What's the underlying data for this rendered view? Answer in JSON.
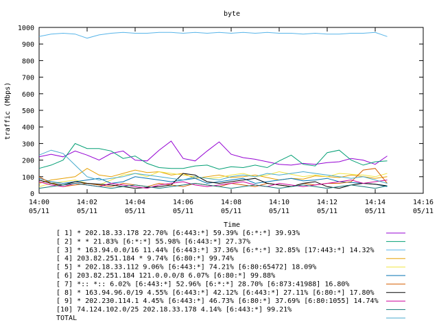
{
  "chart_data": {
    "type": "line",
    "title": "byte",
    "xlabel": "Time",
    "ylabel": "traffic (Mbps)",
    "ylim": [
      0,
      1000
    ],
    "yticks": [
      0,
      100,
      200,
      300,
      400,
      500,
      600,
      700,
      800,
      900,
      1000
    ],
    "xlim": [
      "14:00",
      "14:16"
    ],
    "xticks": [
      {
        "time": "14:00",
        "date": "05/11"
      },
      {
        "time": "14:02",
        "date": "05/11"
      },
      {
        "time": "14:04",
        "date": "05/11"
      },
      {
        "time": "14:06",
        "date": "05/11"
      },
      {
        "time": "14:08",
        "date": "05/11"
      },
      {
        "time": "14:10",
        "date": "05/11"
      },
      {
        "time": "14:12",
        "date": "05/11"
      },
      {
        "time": "14:14",
        "date": "05/11"
      },
      {
        "time": "14:16",
        "date": "05/11"
      }
    ],
    "grid": false,
    "legend_position": "bottom",
    "x": [
      "14:00",
      "14:00:30",
      "14:01",
      "14:01:30",
      "14:02",
      "14:02:30",
      "14:03",
      "14:03:30",
      "14:04",
      "14:04:30",
      "14:05",
      "14:05:30",
      "14:06",
      "14:06:30",
      "14:07",
      "14:07:30",
      "14:08",
      "14:08:30",
      "14:09",
      "14:09:30",
      "14:10",
      "14:10:30",
      "14:11",
      "14:11:30",
      "14:12",
      "14:12:30",
      "14:13",
      "14:13:30",
      "14:14",
      "14:14:30"
    ],
    "series": [
      {
        "name": "[ 1] * 202.18.33.178 22.70%  [6:443:*] 59.39% [6:*:*] 39.93%",
        "color": "#9400d3",
        "values": [
          220,
          235,
          220,
          255,
          230,
          200,
          240,
          255,
          200,
          195,
          260,
          315,
          210,
          195,
          255,
          310,
          235,
          215,
          205,
          190,
          175,
          170,
          180,
          175,
          185,
          190,
          210,
          200,
          175,
          225
        ]
      },
      {
        "name": "[ 2] * * 21.83%  [6:*:*] 55.98% [6:443:*] 27.37%",
        "color": "#009e73",
        "values": [
          150,
          170,
          200,
          300,
          270,
          270,
          255,
          210,
          225,
          180,
          155,
          150,
          150,
          165,
          170,
          145,
          160,
          155,
          170,
          155,
          195,
          230,
          175,
          165,
          245,
          260,
          200,
          170,
          190,
          195
        ]
      },
      {
        "name": "[ 3] * 163.94.0.0/16 11.44%  [6:443:*] 37.36% [6:*:*] 32.85% [17:443:*] 14.32%",
        "color": "#56b4e9",
        "values": [
          945,
          960,
          965,
          960,
          935,
          955,
          965,
          970,
          965,
          965,
          970,
          970,
          965,
          970,
          965,
          970,
          965,
          970,
          965,
          970,
          965,
          965,
          960,
          965,
          960,
          960,
          965,
          965,
          970,
          945
        ]
      },
      {
        "name": "[ 4] 203.82.251.184 * 9.74%  [6:80:*] 99.74%",
        "color": "#e69f00",
        "values": [
          60,
          80,
          90,
          100,
          150,
          110,
          100,
          120,
          140,
          125,
          130,
          110,
          120,
          90,
          100,
          110,
          95,
          100,
          110,
          95,
          80,
          90,
          85,
          105,
          100,
          95,
          110,
          100,
          90,
          100
        ]
      },
      {
        "name": "[ 5] * 202.18.33.112 9.06%  [6:443:*] 74.21% [6:80:65472] 18.09%",
        "color": "#f0e442",
        "values": [
          40,
          60,
          70,
          80,
          60,
          50,
          80,
          110,
          120,
          100,
          130,
          120,
          110,
          100,
          90,
          95,
          110,
          120,
          100,
          110,
          130,
          115,
          100,
          110,
          100,
          120,
          115,
          110,
          100,
          120
        ]
      },
      {
        "name": "[ 6] 203.82.251.184 121.0.0.0/8 6.07%  [6:80:*] 99.88%",
        "color": "#0072b2",
        "values": [
          90,
          70,
          60,
          70,
          80,
          90,
          60,
          70,
          100,
          90,
          80,
          70,
          80,
          90,
          60,
          70,
          80,
          90,
          60,
          70,
          80,
          90,
          75,
          80,
          90,
          70,
          65,
          60,
          55,
          40
        ]
      },
      {
        "name": "[ 7] *:: *:: 6.02%  [6:443:*] 52.96% [6:*:*] 28.70% [6:873:41988] 16.80%",
        "color": "#d55e00",
        "values": [
          100,
          60,
          40,
          50,
          60,
          50,
          40,
          60,
          50,
          40,
          60,
          50,
          40,
          60,
          50,
          40,
          60,
          50,
          40,
          60,
          50,
          40,
          60,
          50,
          60,
          60,
          70,
          140,
          150,
          60
        ]
      },
      {
        "name": "[ 8] * 163.94.96.0/19 4.55%  [6:443:*] 42.12% [6:443:*] 27.11% [6:80:*] 17.80%",
        "color": "#000000",
        "values": [
          80,
          60,
          50,
          70,
          60,
          55,
          50,
          40,
          30,
          35,
          40,
          50,
          120,
          110,
          70,
          60,
          70,
          80,
          90,
          60,
          50,
          40,
          60,
          70,
          40,
          30,
          50,
          60,
          55,
          45
        ]
      },
      {
        "name": "[ 9] * 202.230.114.1 4.45%  [6:443:*] 46.73% [6:80:*] 37.69% [6:80:1055] 14.74%",
        "color": "#cc0099",
        "values": [
          70,
          50,
          40,
          60,
          50,
          40,
          60,
          50,
          40,
          30,
          50,
          60,
          70,
          50,
          40,
          50,
          60,
          70,
          50,
          40,
          60,
          50,
          40,
          50,
          60,
          70,
          80,
          60,
          70,
          80
        ]
      },
      {
        "name": "[10] 74.124.102.0/25 202.18.33.178 4.14%  [6:443:*] 99.21%",
        "color": "#117777",
        "values": [
          30,
          40,
          50,
          60,
          50,
          40,
          30,
          40,
          50,
          40,
          30,
          40,
          50,
          60,
          50,
          40,
          30,
          40,
          50,
          40,
          30,
          40,
          50,
          40,
          30,
          40,
          50,
          40,
          30,
          45
        ]
      },
      {
        "name": "TOTAL",
        "color": "#44aacc",
        "values": [
          230,
          260,
          240,
          170,
          100,
          80,
          90,
          100,
          120,
          110,
          100,
          90,
          80,
          100,
          90,
          80,
          100,
          110,
          100,
          120,
          110,
          120,
          130,
          120,
          110,
          100,
          90,
          100,
          80,
          60
        ]
      }
    ]
  }
}
